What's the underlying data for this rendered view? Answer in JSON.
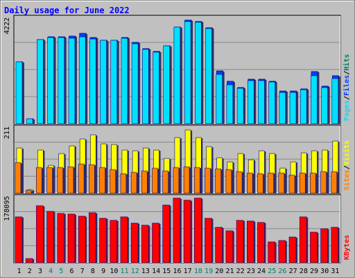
{
  "chart_data": {
    "type": "bar",
    "title": "Daily usage for June 2022",
    "days": [
      "1",
      "2",
      "3",
      "4",
      "5",
      "6",
      "7",
      "8",
      "9",
      "10",
      "11",
      "12",
      "13",
      "14",
      "15",
      "16",
      "17",
      "18",
      "19",
      "20",
      "21",
      "22",
      "23",
      "24",
      "25",
      "26",
      "27",
      "28",
      "29",
      "30",
      "31"
    ],
    "weekend_days": [
      "4",
      "5",
      "11",
      "12",
      "18",
      "19",
      "25",
      "26"
    ],
    "colors": {
      "background": "#c0c0c0",
      "title": "#0000ff",
      "day_label": "#000000",
      "weekend_label": "#00805c",
      "hits": "#00805c",
      "files": "#0040ff",
      "pages": "#00e0ff",
      "visits": "#ffff00",
      "sites": "#ff8000",
      "kbytes": "#ff0000"
    },
    "top_panel": {
      "max_label": "4222",
      "max": 4222,
      "series": [
        {
          "name": "Hits",
          "values": [
            2500,
            210,
            3400,
            3530,
            3530,
            3550,
            3650,
            3480,
            3390,
            3390,
            3500,
            3300,
            3050,
            2920,
            3150,
            3900,
            4200,
            4150,
            3890,
            2140,
            1720,
            1470,
            1790,
            1790,
            1710,
            1320,
            1310,
            1420,
            2110,
            1530,
            1940
          ]
        },
        {
          "name": "Files",
          "values": [
            2500,
            210,
            3400,
            3530,
            3530,
            3550,
            3650,
            3480,
            3390,
            3390,
            3500,
            3300,
            3050,
            2920,
            3150,
            3900,
            4200,
            4150,
            3890,
            2140,
            1720,
            1470,
            1790,
            1790,
            1710,
            1320,
            1310,
            1420,
            2110,
            1530,
            1940
          ]
        },
        {
          "name": "Pages",
          "values": [
            2500,
            210,
            3400,
            3480,
            3490,
            3470,
            3530,
            3440,
            3370,
            3370,
            3450,
            3250,
            3000,
            2890,
            3150,
            3900,
            4150,
            4100,
            3850,
            2000,
            1580,
            1430,
            1750,
            1750,
            1680,
            1280,
            1270,
            1380,
            1950,
            1450,
            1830
          ]
        }
      ]
    },
    "middle_panel": {
      "max_label": "211",
      "max": 211,
      "series": [
        {
          "name": "Visits",
          "values": [
            150,
            12,
            142,
            92,
            130,
            156,
            180,
            193,
            163,
            161,
            143,
            141,
            150,
            142,
            114,
            184,
            208,
            184,
            154,
            118,
            104,
            130,
            109,
            139,
            130,
            83,
            104,
            134,
            140,
            142,
            173
          ]
        },
        {
          "name": "Sites",
          "values": [
            100,
            10,
            85,
            86,
            84,
            88,
            96,
            95,
            84,
            78,
            64,
            68,
            74,
            83,
            73,
            86,
            88,
            85,
            82,
            80,
            77,
            70,
            66,
            64,
            66,
            66,
            60,
            66,
            66,
            70,
            70
          ]
        }
      ]
    },
    "bottom_panel": {
      "max_label": "178095",
      "max": 178095,
      "series": [
        {
          "name": "KBytes",
          "values": [
            128000,
            11000,
            159000,
            144000,
            137000,
            136000,
            129000,
            139000,
            124000,
            119000,
            128000,
            110000,
            105000,
            111000,
            160000,
            180000,
            174000,
            180000,
            124000,
            99000,
            89000,
            118000,
            117000,
            112000,
            58000,
            61000,
            71000,
            128000,
            86000,
            95000,
            99000
          ]
        }
      ]
    },
    "legend_top": [
      "Pages",
      "/",
      "Files",
      "/",
      "Hits"
    ],
    "legend_middle": [
      "Sites",
      "/",
      "Visits"
    ],
    "legend_bottom": [
      "KBytes"
    ]
  }
}
